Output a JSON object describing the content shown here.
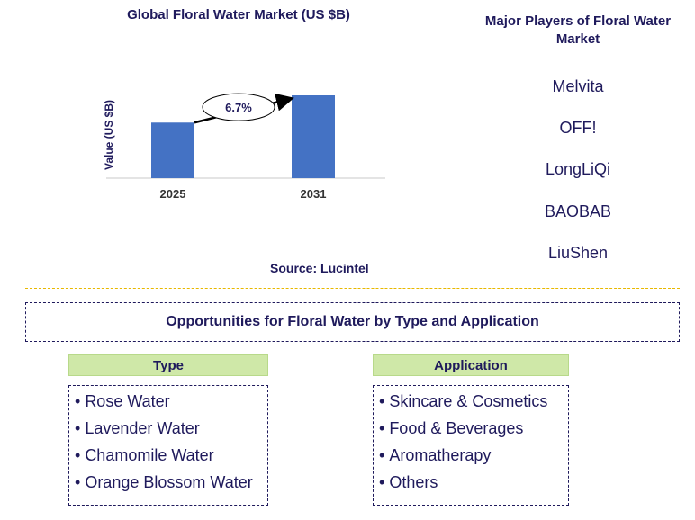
{
  "chart_data": {
    "type": "bar",
    "title": "Global Floral Water Market (US $B)",
    "ylabel": "Value (US $B)",
    "xlabel": "",
    "categories": [
      "2025",
      "2031"
    ],
    "values": [
      1.0,
      1.49
    ],
    "annotation": {
      "text": "6.7%",
      "kind": "CAGR arrow between bars"
    },
    "grid": false,
    "legend": "none",
    "bar_color": "#4472c4"
  },
  "source": "Source: Lucintel",
  "players": {
    "title": "Major Players of Floral Water Market",
    "items": [
      "Melvita",
      "OFF!",
      "LongLiQi",
      "BAOBAB",
      "LiuShen"
    ]
  },
  "opportunities": {
    "title": "Opportunities for Floral Water by Type and Application",
    "type": {
      "header": "Type",
      "items": [
        "Rose Water",
        "Lavender Water",
        "Chamomile Water",
        "Orange Blossom Water"
      ]
    },
    "application": {
      "header": "Application",
      "items": [
        "Skincare & Cosmetics",
        "Food & Beverages",
        "Aromatherapy",
        "Others"
      ]
    }
  },
  "colors": {
    "title_text": "#1f1a5c",
    "divider": "#e8b800",
    "header_fill": "#cfe8a8"
  }
}
